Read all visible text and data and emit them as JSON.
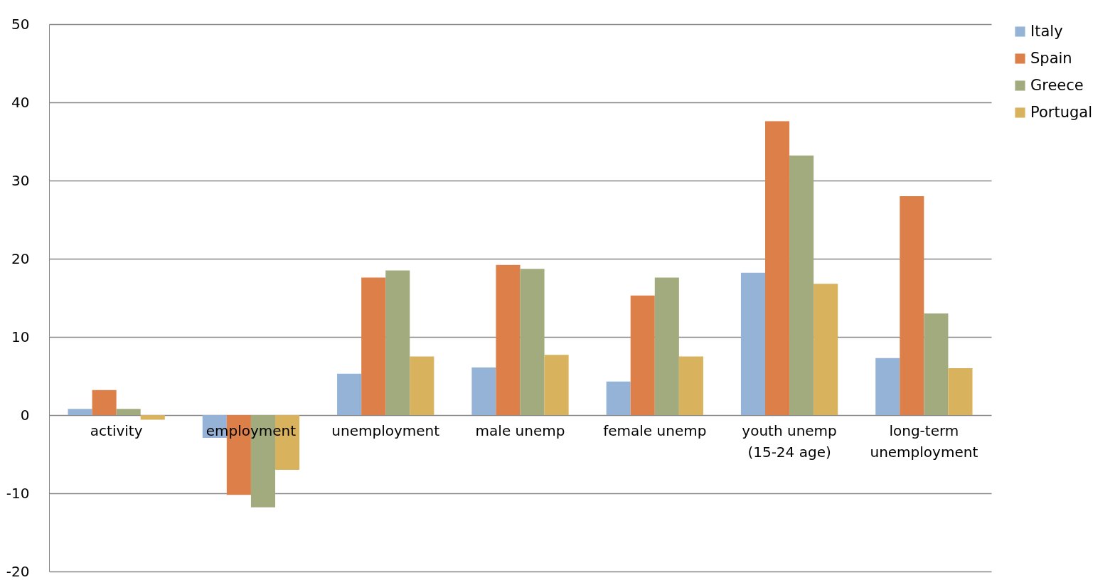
{
  "chart_data": {
    "type": "bar",
    "categories": [
      "activity",
      "employment",
      "unemployment",
      "male unemp",
      "female unemp",
      "youth unemp\n(15-24 age)",
      "long-term\nunemployment"
    ],
    "series": [
      {
        "name": "Italy",
        "color": "#95b3d7",
        "values": [
          0.8,
          -2.9,
          5.3,
          6.1,
          4.3,
          18.2,
          7.3
        ]
      },
      {
        "name": "Spain",
        "color": "#dd7f48",
        "values": [
          3.2,
          -10.2,
          17.6,
          19.2,
          15.3,
          37.6,
          28.0
        ]
      },
      {
        "name": "Greece",
        "color": "#a2ab7e",
        "values": [
          0.8,
          -11.8,
          18.5,
          18.7,
          17.6,
          33.2,
          13.0
        ]
      },
      {
        "name": "Portugal",
        "color": "#d9b25e",
        "values": [
          -0.6,
          -7.0,
          7.5,
          7.7,
          7.5,
          16.8,
          6.0
        ]
      }
    ],
    "ylim": [
      -20,
      50
    ],
    "yticks": [
      -20,
      -10,
      0,
      10,
      20,
      30,
      40,
      50
    ],
    "grid": "y",
    "legend": "right"
  }
}
